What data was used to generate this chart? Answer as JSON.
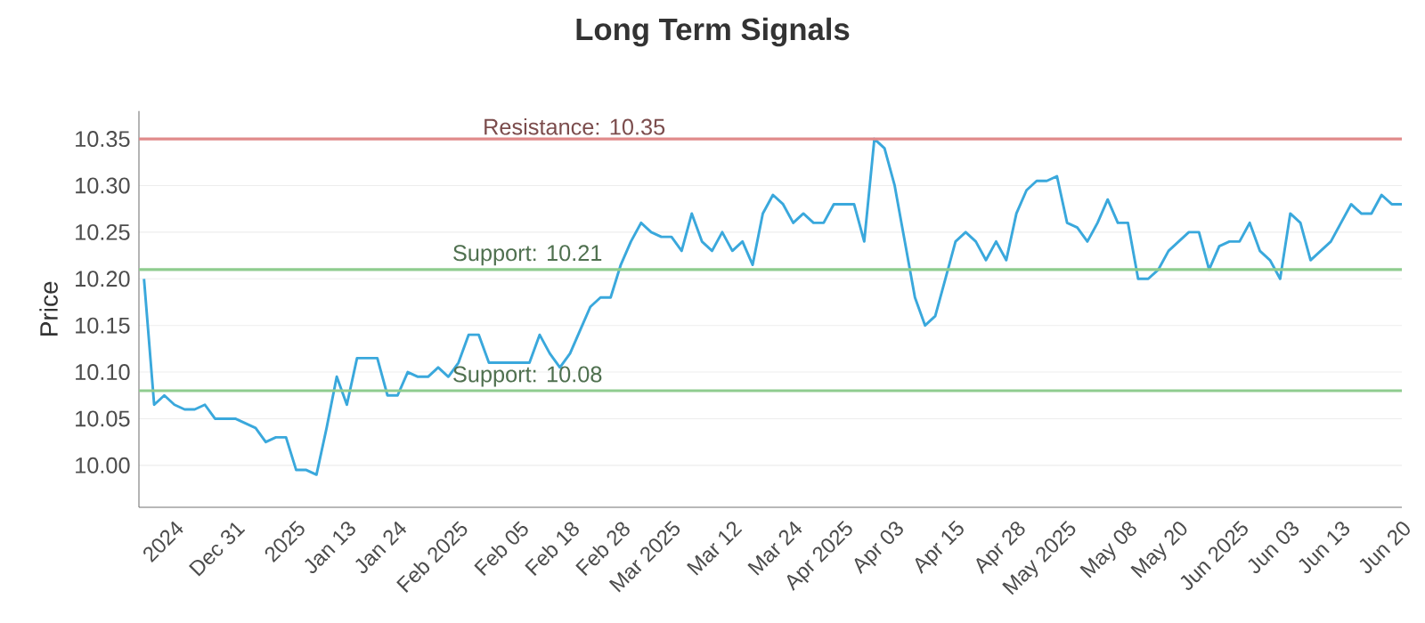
{
  "chart_data": {
    "type": "line",
    "title": "Long Term Signals",
    "ylabel": "Price",
    "categories": [
      null,
      null,
      null,
      "2024",
      null,
      null,
      null,
      null,
      null,
      "Dec 31",
      null,
      null,
      null,
      null,
      null,
      "2025",
      null,
      null,
      null,
      null,
      "Jan 13",
      null,
      null,
      null,
      null,
      "Jan 24",
      null,
      null,
      null,
      null,
      null,
      "Feb 2025",
      null,
      null,
      null,
      null,
      null,
      "Feb 05",
      null,
      null,
      null,
      null,
      "Feb 18",
      null,
      null,
      null,
      null,
      "Feb 28",
      null,
      null,
      null,
      null,
      "Mar 2025",
      null,
      null,
      null,
      null,
      null,
      "Mar 12",
      null,
      null,
      null,
      null,
      null,
      "Mar 24",
      null,
      null,
      null,
      null,
      "Apr 2025",
      null,
      null,
      null,
      null,
      "Apr 03",
      null,
      null,
      null,
      null,
      null,
      "Apr 15",
      null,
      null,
      null,
      null,
      null,
      "Apr 28",
      null,
      null,
      null,
      null,
      "May 2025",
      null,
      null,
      null,
      null,
      null,
      "May 08",
      null,
      null,
      null,
      null,
      "May 20",
      null,
      null,
      null,
      null,
      null,
      "Jun 2025",
      null,
      null,
      null,
      null,
      "Jun 03",
      null,
      null,
      null,
      null,
      "Jun 13",
      null,
      null,
      null,
      null,
      null,
      "Jun 20"
    ],
    "series": [
      {
        "color": "#3aa8dc",
        "values": [
          10.2,
          10.065,
          10.075,
          10.065,
          10.06,
          10.06,
          10.065,
          10.05,
          10.05,
          10.05,
          10.045,
          10.04,
          10.025,
          10.03,
          10.03,
          9.995,
          9.995,
          9.99,
          10.04,
          10.095,
          10.065,
          10.115,
          10.115,
          10.115,
          10.075,
          10.075,
          10.1,
          10.095,
          10.095,
          10.105,
          10.095,
          10.11,
          10.14,
          10.14,
          10.11,
          10.11,
          10.11,
          10.11,
          10.11,
          10.14,
          10.12,
          10.105,
          10.12,
          10.145,
          10.17,
          10.18,
          10.18,
          10.215,
          10.24,
          10.26,
          10.25,
          10.245,
          10.245,
          10.23,
          10.27,
          10.24,
          10.23,
          10.25,
          10.23,
          10.24,
          10.215,
          10.27,
          10.29,
          10.28,
          10.26,
          10.27,
          10.26,
          10.26,
          10.28,
          10.28,
          10.28,
          10.24,
          10.35,
          10.34,
          10.3,
          10.24,
          10.18,
          10.15,
          10.16,
          10.2,
          10.24,
          10.25,
          10.24,
          10.22,
          10.24,
          10.22,
          10.27,
          10.295,
          10.305,
          10.305,
          10.31,
          10.26,
          10.255,
          10.24,
          10.26,
          10.285,
          10.26,
          10.26,
          10.2,
          10.2,
          10.21,
          10.23,
          10.24,
          10.25,
          10.25,
          10.21,
          10.235,
          10.24,
          10.24,
          10.26,
          10.23,
          10.22,
          10.2,
          10.27,
          10.26,
          10.22,
          10.23,
          10.24,
          10.26,
          10.28,
          10.27,
          10.27,
          10.29,
          10.28,
          10.28
        ]
      }
    ],
    "ylim": [
      9.955,
      10.38
    ],
    "yticks": [
      {
        "value": 10.0,
        "label": "10.00"
      },
      {
        "value": 10.05,
        "label": "10.05"
      },
      {
        "value": 10.1,
        "label": "10.10"
      },
      {
        "value": 10.15,
        "label": "10.15"
      },
      {
        "value": 10.2,
        "label": "10.20"
      },
      {
        "value": 10.25,
        "label": "10.25"
      },
      {
        "value": 10.3,
        "label": "10.30"
      },
      {
        "value": 10.35,
        "label": "10.35"
      }
    ],
    "grid": "y",
    "ref_lines": [
      {
        "axis": "y",
        "value": 10.35,
        "label": "Resistance: 10.35",
        "color": "#e08a8a"
      },
      {
        "axis": "y",
        "value": 10.21,
        "label": "Support: 10.21",
        "color": "#8fcc8f"
      },
      {
        "axis": "y",
        "value": 10.08,
        "label": "Support: 10.08",
        "color": "#8fcc8f"
      }
    ]
  }
}
